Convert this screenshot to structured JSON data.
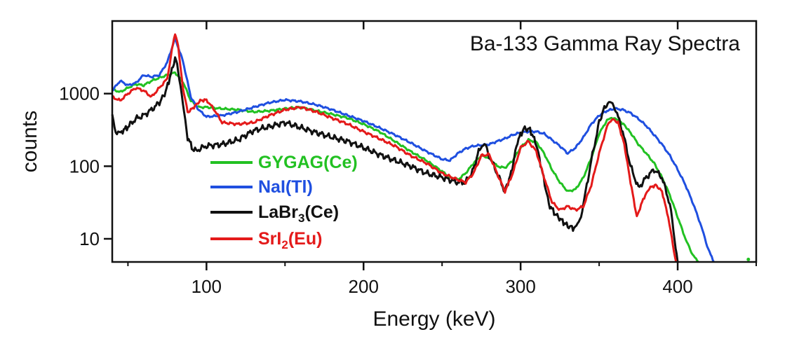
{
  "chart_data": {
    "type": "line",
    "title": "Ba-133 Gamma Ray Spectra",
    "xlabel": "Energy (keV)",
    "ylabel": "counts",
    "x_scale": "linear",
    "y_scale": "log",
    "xlim": [
      40,
      450
    ],
    "ylim": [
      4.8,
      10000
    ],
    "x_ticks": [
      100,
      200,
      300,
      400
    ],
    "y_ticks": [
      10,
      100,
      1000
    ],
    "x_tick_labels": [
      "100",
      "200",
      "300",
      "400"
    ],
    "y_tick_labels": [
      "10",
      "100",
      "1000"
    ],
    "legend_position": "left-center",
    "series": [
      {
        "legend_main": "GYGAG(Ce)",
        "legend_sub": "",
        "legend_tail": "",
        "color": "#22c122",
        "x": [
          40,
          45,
          50,
          55,
          60,
          65,
          70,
          75,
          80,
          85,
          90,
          95,
          100,
          110,
          120,
          130,
          140,
          150,
          160,
          170,
          180,
          190,
          200,
          210,
          220,
          230,
          240,
          250,
          255,
          260,
          265,
          270,
          275,
          280,
          285,
          290,
          295,
          300,
          305,
          310,
          315,
          320,
          325,
          330,
          335,
          340,
          345,
          350,
          355,
          358,
          362,
          366,
          370,
          375,
          380,
          385,
          390,
          395,
          400,
          405,
          408,
          411,
          413
        ],
        "y": [
          1150,
          1050,
          1200,
          1350,
          1300,
          1500,
          1650,
          1800,
          1950,
          1450,
          800,
          650,
          650,
          620,
          600,
          560,
          580,
          620,
          650,
          580,
          520,
          460,
          380,
          300,
          220,
          160,
          120,
          85,
          70,
          65,
          80,
          110,
          140,
          130,
          100,
          95,
          120,
          180,
          230,
          215,
          150,
          90,
          60,
          45,
          48,
          70,
          130,
          280,
          430,
          460,
          440,
          370,
          290,
          200,
          150,
          110,
          70,
          40,
          20,
          10,
          7,
          5.5,
          4.8
        ]
      },
      {
        "legend_main": "NaI(Tl)",
        "legend_sub": "",
        "legend_tail": "",
        "color": "#1f4fe0",
        "x": [
          40,
          45,
          50,
          55,
          60,
          65,
          70,
          75,
          80,
          85,
          90,
          95,
          100,
          110,
          120,
          130,
          140,
          150,
          160,
          170,
          180,
          190,
          200,
          210,
          220,
          230,
          240,
          250,
          255,
          260,
          265,
          270,
          275,
          280,
          285,
          290,
          295,
          300,
          305,
          310,
          315,
          320,
          325,
          330,
          335,
          340,
          345,
          350,
          355,
          360,
          365,
          370,
          375,
          380,
          385,
          390,
          395,
          400,
          405,
          410,
          415,
          418,
          421,
          423
        ],
        "y": [
          1100,
          1500,
          1300,
          1400,
          1800,
          1700,
          1800,
          2700,
          5800,
          2800,
          900,
          600,
          480,
          500,
          560,
          650,
          750,
          820,
          780,
          700,
          600,
          500,
          420,
          340,
          270,
          210,
          160,
          125,
          120,
          150,
          175,
          190,
          195,
          200,
          220,
          240,
          270,
          290,
          300,
          300,
          280,
          230,
          190,
          150,
          180,
          250,
          380,
          500,
          580,
          620,
          600,
          540,
          450,
          360,
          270,
          200,
          140,
          90,
          55,
          30,
          15,
          9,
          6,
          4.8
        ]
      },
      {
        "legend_main": "LaBr",
        "legend_sub": "3",
        "legend_tail": "(Ce)",
        "color": "#111111",
        "x": [
          40,
          43,
          46,
          50,
          55,
          60,
          65,
          70,
          74,
          78,
          80,
          82,
          85,
          88,
          92,
          100,
          110,
          120,
          130,
          140,
          150,
          160,
          170,
          180,
          190,
          200,
          210,
          220,
          230,
          240,
          250,
          260,
          265,
          270,
          274,
          277,
          280,
          285,
          290,
          294,
          298,
          302,
          306,
          310,
          314,
          318,
          322,
          326,
          330,
          334,
          337,
          340,
          345,
          350,
          354,
          357,
          360,
          365,
          370,
          375,
          380,
          385,
          390,
          395,
          398,
          400
        ],
        "y": [
          500,
          270,
          300,
          350,
          450,
          500,
          600,
          750,
          1050,
          2100,
          3100,
          2200,
          700,
          250,
          160,
          190,
          200,
          230,
          310,
          350,
          400,
          340,
          290,
          250,
          220,
          180,
          145,
          120,
          100,
          80,
          70,
          60,
          60,
          90,
          180,
          200,
          140,
          80,
          45,
          80,
          220,
          330,
          320,
          200,
          80,
          30,
          22,
          18,
          15,
          14,
          16,
          30,
          120,
          400,
          700,
          750,
          650,
          300,
          100,
          50,
          70,
          90,
          70,
          30,
          10,
          4.8
        ]
      },
      {
        "legend_main": "SrI",
        "legend_sub": "2",
        "legend_tail": "(Eu)",
        "color": "#e41a1a",
        "x": [
          40,
          45,
          50,
          55,
          60,
          65,
          70,
          75,
          78,
          80,
          82,
          85,
          88,
          92,
          96,
          100,
          105,
          110,
          120,
          130,
          140,
          150,
          160,
          170,
          180,
          190,
          200,
          210,
          220,
          230,
          240,
          250,
          260,
          265,
          270,
          275,
          280,
          285,
          290,
          295,
          300,
          305,
          310,
          315,
          320,
          325,
          330,
          335,
          340,
          345,
          350,
          355,
          358,
          362,
          366,
          370,
          374,
          378,
          382,
          386,
          390,
          394,
          397,
          399
        ],
        "y": [
          900,
          800,
          1000,
          1200,
          1100,
          900,
          1200,
          1600,
          4000,
          6800,
          4500,
          1200,
          550,
          650,
          800,
          820,
          600,
          400,
          380,
          400,
          500,
          600,
          650,
          560,
          460,
          380,
          300,
          240,
          190,
          140,
          110,
          80,
          65,
          60,
          80,
          140,
          145,
          80,
          45,
          80,
          180,
          220,
          160,
          70,
          32,
          25,
          28,
          25,
          28,
          55,
          150,
          350,
          450,
          400,
          200,
          60,
          20,
          35,
          50,
          55,
          45,
          20,
          8,
          4.8
        ]
      }
    ]
  }
}
